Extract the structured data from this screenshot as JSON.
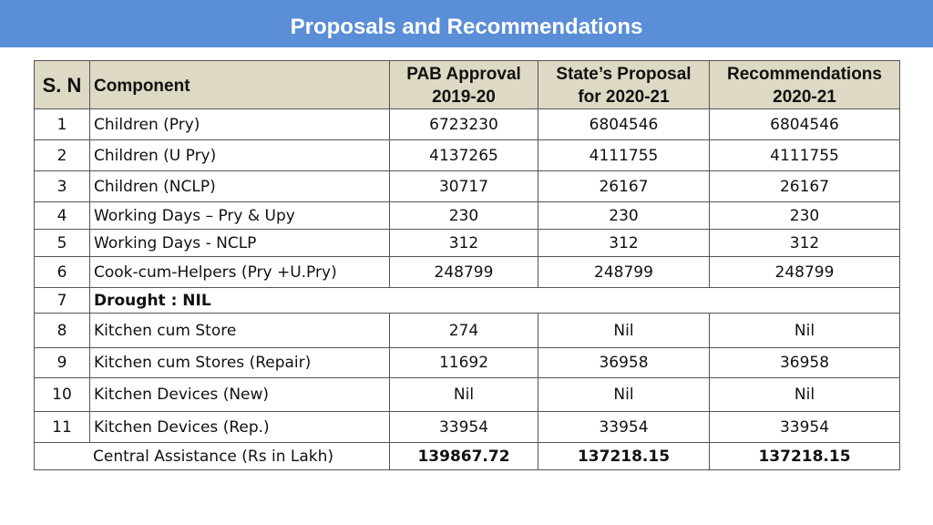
{
  "header": {
    "title": "Proposals and Recommendations"
  },
  "table": {
    "columns": [
      [
        "S. N"
      ],
      [
        "Component"
      ],
      [
        "PAB Approval",
        "2019-20"
      ],
      [
        "State’s Proposal",
        "for 2020-21"
      ],
      [
        "Recommendations",
        "2020-21"
      ]
    ],
    "rows": [
      [
        "1",
        "Children (Pry)",
        "6723230",
        "6804546",
        "6804546"
      ],
      [
        "2",
        "Children (U Pry)",
        "4137265",
        "4111755",
        "4111755"
      ],
      [
        "3",
        "Children (NCLP)",
        "30717",
        "26167",
        "26167"
      ],
      [
        "4",
        "Working Days – Pry & Upy",
        "230",
        "230",
        "230"
      ],
      [
        "5",
        "Working Days - NCLP",
        "312",
        "312",
        "312"
      ],
      [
        "6",
        "Cook-cum-Helpers (Pry +U.Pry)",
        "248799",
        "248799",
        "248799"
      ],
      [
        "7",
        "Drought : NIL"
      ],
      [
        "8",
        "Kitchen cum Store",
        "274",
        "Nil",
        "Nil"
      ],
      [
        "9",
        "Kitchen cum Stores (Repair)",
        "11692",
        "36958",
        "36958"
      ],
      [
        "10",
        "Kitchen Devices (New)",
        "Nil",
        "Nil",
        "Nil"
      ],
      [
        "11",
        "Kitchen Devices (Rep.)",
        "33954",
        "33954",
        "33954"
      ]
    ],
    "total": {
      "label": "Central Assistance (Rs in Lakh)",
      "values": [
        "139867.72",
        "137218.15",
        "137218.15"
      ]
    }
  }
}
